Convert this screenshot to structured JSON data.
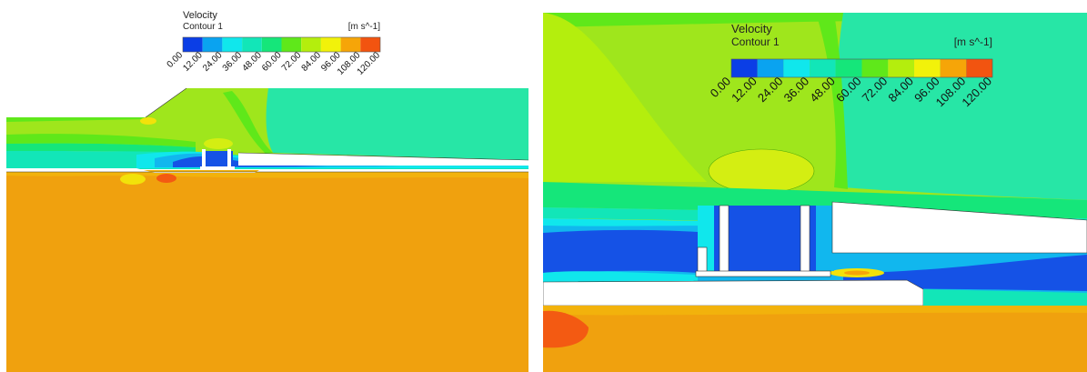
{
  "legend": {
    "title": "Velocity",
    "subtitle": "Contour 1",
    "units": "[m s^-1]",
    "levels": [
      "0.00",
      "12.00",
      "24.00",
      "36.00",
      "48.00",
      "60.00",
      "72.00",
      "84.00",
      "96.00",
      "108.00",
      "120.00"
    ],
    "colors": [
      "#0b3ee6",
      "#0aa3f0",
      "#10e7ec",
      "#12e6b8",
      "#15e67a",
      "#5fe81a",
      "#b4ee0d",
      "#f2f20a",
      "#f6a508",
      "#f25410"
    ]
  },
  "palette": {
    "ground": "#f0a10e",
    "ground_hot": "#f35a12",
    "inflow": "#9fe61c",
    "freestream": "#27e6a6",
    "wake_low": "#1552e6",
    "wake_mid": "#11b7ee",
    "wake_cyan": "#18e5e6",
    "solid": "#ffffff"
  }
}
